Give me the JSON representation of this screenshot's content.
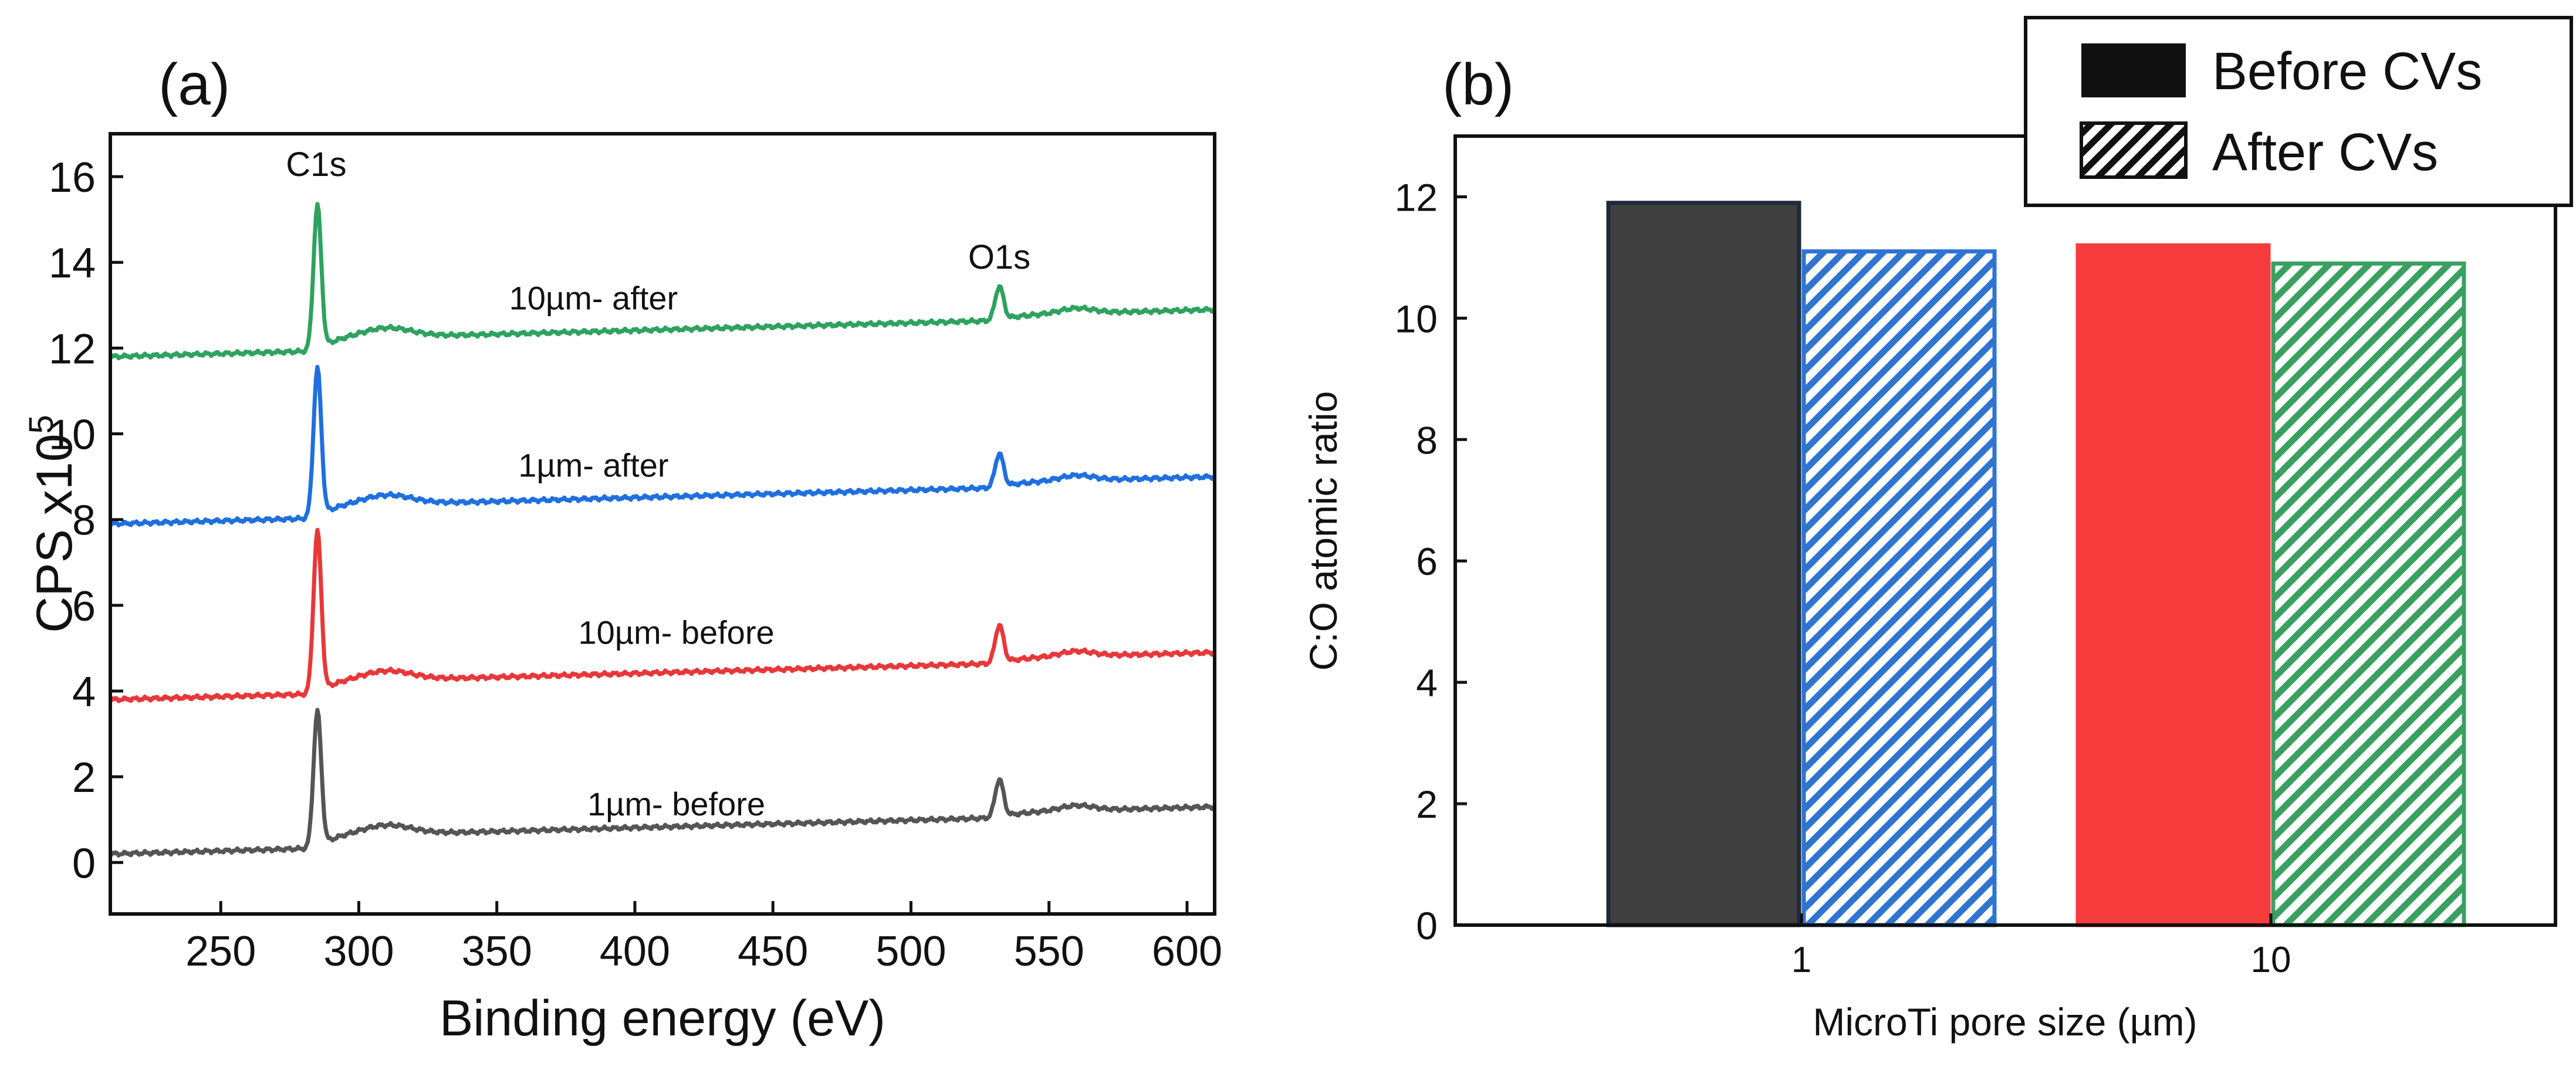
{
  "colors": {
    "before_1um": "#555555",
    "before_10um": "#e8373a",
    "after_1um": "#1f6fe0",
    "after_10um": "#2ea25f",
    "bar_before_1": "#404040",
    "bar_before_10": "#f53b3b",
    "bar_after_1": "#2f74d0",
    "bar_after_10": "#3aa060"
  },
  "chart_data": [
    {
      "panel_label": "(a)",
      "type": "line",
      "title": "",
      "xlabel": "Binding energy (eV)",
      "ylabel": "CPS x10",
      "ylabel_sup": "5",
      "xlim": [
        210,
        610
      ],
      "ylim": [
        -1.2,
        17
      ],
      "xticks": [
        250,
        300,
        350,
        400,
        450,
        500,
        550,
        600
      ],
      "yticks": [
        0,
        2,
        4,
        6,
        8,
        10,
        12,
        14,
        16
      ],
      "grid": false,
      "peaks": [
        {
          "label": "C1s",
          "energy_eV": 285
        },
        {
          "label": "O1s",
          "energy_eV": 532
        }
      ],
      "series": [
        {
          "name": "1µm- before",
          "baseline": 0.2,
          "c1s_height": 3.2,
          "o1s_height": 0.9,
          "label_position_eV": 415,
          "label_y": 1.1
        },
        {
          "name": "10µm- before",
          "baseline": 3.8,
          "c1s_height": 3.8,
          "o1s_height": 0.9,
          "label_position_eV": 415,
          "label_y": 5.1
        },
        {
          "name": "1µm- after",
          "baseline": 7.9,
          "c1s_height": 3.5,
          "o1s_height": 0.8,
          "label_position_eV": 385,
          "label_y": 9.0
        },
        {
          "name": "10µm- after",
          "baseline": 11.8,
          "c1s_height": 3.4,
          "o1s_height": 0.8,
          "label_position_eV": 385,
          "label_y": 12.9
        }
      ]
    },
    {
      "panel_label": "(b)",
      "type": "bar",
      "title": "",
      "xlabel": "MicroTi pore size (µm)",
      "ylabel": "C:O atomic ratio",
      "categories": [
        "1",
        "10"
      ],
      "ylim": [
        0,
        13
      ],
      "yticks": [
        0,
        2,
        4,
        6,
        8,
        10,
        12
      ],
      "grid": false,
      "legend_position": "top-right",
      "legend": [
        {
          "name": "Before CVs",
          "pattern": "solid"
        },
        {
          "name": "After CVs",
          "pattern": "hatched"
        }
      ],
      "series": [
        {
          "name": "Before CVs",
          "values": [
            11.9,
            11.2
          ]
        },
        {
          "name": "After CVs",
          "values": [
            11.1,
            10.9
          ]
        }
      ]
    }
  ]
}
